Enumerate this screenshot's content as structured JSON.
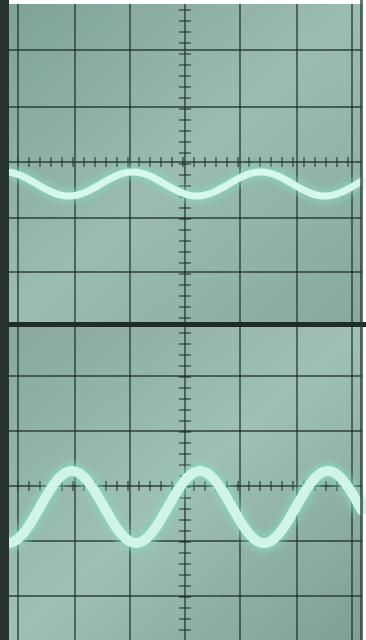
{
  "scene": {
    "subject": "oscilloscope-screen-photographs",
    "panels": [
      {
        "name": "upper-trace",
        "trace": "sine-wave",
        "relative_amplitude": 0.18,
        "cycles_visible": 2.6
      },
      {
        "name": "lower-trace",
        "trace": "sine-wave",
        "relative_amplitude": 0.5,
        "cycles_visible": 2.6
      }
    ],
    "colors": {
      "screen": "#8fb0a6",
      "screen_dark": "#6f8f86",
      "grid": "#1c2b28",
      "trace": "#c8f2e2",
      "trace_glow": "#7fe0c2",
      "frame": "#2a3a36"
    }
  }
}
